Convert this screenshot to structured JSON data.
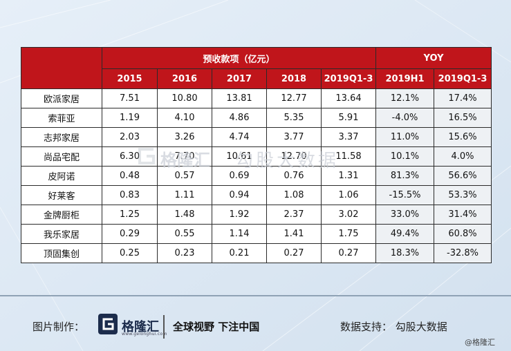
{
  "table": {
    "group_headers": [
      "预收款项（亿元）",
      "YOY"
    ],
    "columns": [
      "2015",
      "2016",
      "2017",
      "2018",
      "2019Q1-3",
      "2019H1",
      "2019Q1-3"
    ],
    "rows": [
      {
        "name": "欧派家居",
        "cells": [
          "7.51",
          "10.80",
          "13.81",
          "12.77",
          "13.64",
          "12.1%",
          "17.4%"
        ]
      },
      {
        "name": "索菲亚",
        "cells": [
          "1.19",
          "4.10",
          "4.86",
          "5.35",
          "5.91",
          "-4.0%",
          "16.5%"
        ]
      },
      {
        "name": "志邦家居",
        "cells": [
          "2.03",
          "3.26",
          "4.74",
          "3.77",
          "3.37",
          "11.0%",
          "15.6%"
        ]
      },
      {
        "name": "尚品宅配",
        "cells": [
          "6.30",
          "7.70",
          "10.61",
          "12.70",
          "11.58",
          "10.1%",
          "4.0%"
        ]
      },
      {
        "name": "皮阿诺",
        "cells": [
          "0.48",
          "0.57",
          "0.69",
          "0.76",
          "1.31",
          "81.3%",
          "56.6%"
        ]
      },
      {
        "name": "好莱客",
        "cells": [
          "0.83",
          "1.11",
          "0.94",
          "1.08",
          "1.06",
          "-15.5%",
          "53.3%"
        ]
      },
      {
        "name": "金牌厨柜",
        "cells": [
          "1.25",
          "1.48",
          "1.92",
          "2.37",
          "3.02",
          "33.0%",
          "31.4%"
        ]
      },
      {
        "name": "我乐家居",
        "cells": [
          "0.29",
          "0.55",
          "1.14",
          "1.41",
          "1.75",
          "49.4%",
          "60.8%"
        ]
      },
      {
        "name": "顶固集创",
        "cells": [
          "0.25",
          "0.23",
          "0.21",
          "0.27",
          "0.27",
          "18.3%",
          "-32.8%"
        ]
      }
    ]
  },
  "chart_data": {
    "type": "table",
    "title": "",
    "group_headers": [
      "预收款项（亿元）",
      "YOY"
    ],
    "columns": [
      "2015",
      "2016",
      "2017",
      "2018",
      "2019Q1-3",
      "2019H1",
      "2019Q1-3"
    ],
    "categories": [
      "欧派家居",
      "索菲亚",
      "志邦家居",
      "尚品宅配",
      "皮阿诺",
      "好莱客",
      "金牌厨柜",
      "我乐家居",
      "顶固集创"
    ],
    "series": [
      {
        "name": "2015",
        "values": [
          7.51,
          1.19,
          2.03,
          6.3,
          0.48,
          0.83,
          1.25,
          0.29,
          0.25
        ]
      },
      {
        "name": "2016",
        "values": [
          10.8,
          4.1,
          3.26,
          7.7,
          0.57,
          1.11,
          1.48,
          0.55,
          0.23
        ]
      },
      {
        "name": "2017",
        "values": [
          13.81,
          4.86,
          4.74,
          10.61,
          0.69,
          0.94,
          1.92,
          1.14,
          0.21
        ]
      },
      {
        "name": "2018",
        "values": [
          12.77,
          5.35,
          3.77,
          12.7,
          0.76,
          1.08,
          2.37,
          1.41,
          0.27
        ]
      },
      {
        "name": "2019Q1-3",
        "values": [
          13.64,
          5.91,
          3.37,
          11.58,
          1.31,
          1.06,
          3.02,
          1.75,
          0.27
        ]
      },
      {
        "name": "2019H1",
        "values": [
          12.1,
          -4.0,
          11.0,
          10.1,
          81.3,
          -15.5,
          33.0,
          49.4,
          18.3
        ]
      },
      {
        "name": "2019Q1-3",
        "values": [
          17.4,
          16.5,
          15.6,
          4.0,
          56.6,
          53.3,
          31.4,
          60.8,
          -32.8
        ]
      }
    ]
  },
  "footer": {
    "made_by_label": "图片制作：",
    "logo_text": "格隆汇",
    "logo_url": "www.gelonghui.com",
    "slogan": "全球视野 下注中国",
    "support": "数据支持：  勾股大数据",
    "copyright": "@格隆汇"
  },
  "watermark": {
    "logo_text": "格隆汇",
    "text": "勾股大数据"
  },
  "colors": {
    "header_red": "#c0151b",
    "background": "#dde9f5",
    "yoy_cell": "#eef1f4"
  }
}
